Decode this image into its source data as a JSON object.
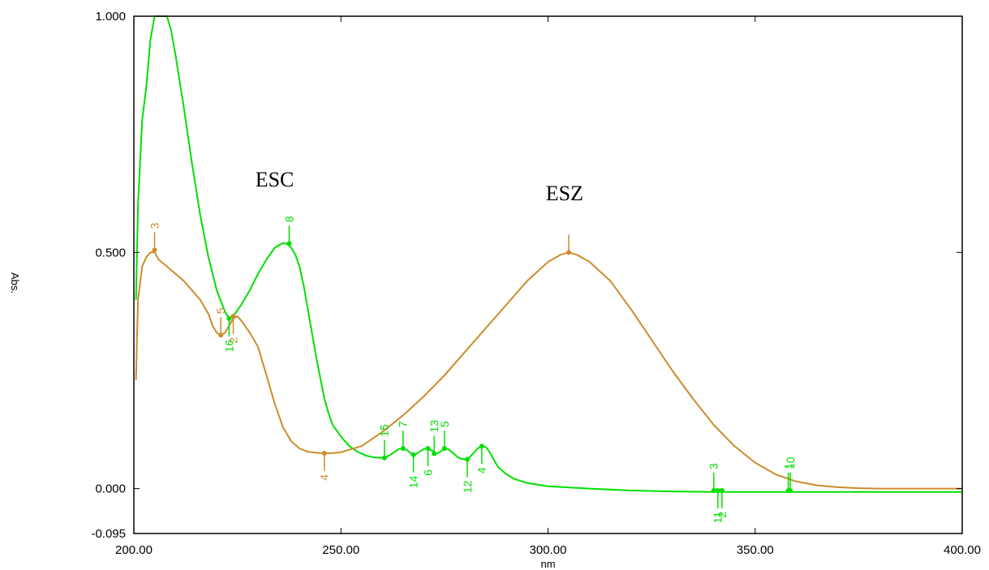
{
  "chart_data": {
    "type": "line",
    "xlabel": "nm",
    "ylabel": "Abs.",
    "xlim": [
      200,
      400
    ],
    "ylim": [
      -0.095,
      1.0
    ],
    "x_ticks": [
      "200.00",
      "250.00",
      "300.00",
      "350.00",
      "400.00"
    ],
    "y_ticks": [
      {
        "value": 1.0,
        "label": "1.000"
      },
      {
        "value": 0.5,
        "label": "0.500"
      },
      {
        "value": 0.0,
        "label": "0.000"
      },
      {
        "value": -0.095,
        "label": "-0.095"
      }
    ],
    "annotations": [
      {
        "text": "ESC",
        "x": 234,
        "y": 0.64
      },
      {
        "text": "ESZ",
        "x": 304,
        "y": 0.61
      }
    ],
    "series": [
      {
        "color": "#00e000",
        "x": [
          200.5,
          201,
          202,
          203,
          204,
          205,
          206,
          207,
          208,
          209,
          210,
          212,
          214,
          216,
          218,
          220,
          222,
          223,
          224,
          226,
          228,
          230,
          232,
          234,
          236,
          237,
          238,
          239,
          240,
          241,
          242,
          243,
          244,
          245,
          246,
          247,
          248,
          250,
          252,
          254,
          256,
          258,
          260,
          261,
          262,
          263,
          264,
          265,
          266,
          267,
          268,
          269,
          270,
          271,
          272,
          273,
          274,
          275,
          276,
          277,
          278,
          279,
          280,
          281,
          282,
          283,
          284,
          285,
          286,
          287,
          288,
          290,
          292,
          295,
          300,
          310,
          320,
          330,
          340,
          350,
          360,
          370,
          380,
          390,
          400
        ],
        "y": [
          0.4,
          0.6,
          0.78,
          0.85,
          0.95,
          1.0,
          1.0,
          1.0,
          1.0,
          0.97,
          0.92,
          0.81,
          0.69,
          0.58,
          0.49,
          0.42,
          0.375,
          0.36,
          0.365,
          0.39,
          0.42,
          0.455,
          0.485,
          0.51,
          0.52,
          0.518,
          0.51,
          0.495,
          0.47,
          0.43,
          0.38,
          0.33,
          0.28,
          0.235,
          0.19,
          0.16,
          0.135,
          0.11,
          0.09,
          0.078,
          0.07,
          0.066,
          0.065,
          0.067,
          0.072,
          0.078,
          0.084,
          0.085,
          0.081,
          0.074,
          0.072,
          0.078,
          0.084,
          0.085,
          0.08,
          0.074,
          0.078,
          0.085,
          0.083,
          0.076,
          0.068,
          0.063,
          0.062,
          0.066,
          0.075,
          0.085,
          0.09,
          0.088,
          0.076,
          0.06,
          0.045,
          0.03,
          0.02,
          0.012,
          0.005,
          0.0,
          -0.004,
          -0.006,
          -0.007,
          -0.007,
          -0.007,
          -0.007,
          -0.007,
          -0.007,
          -0.007
        ],
        "markers": [
          {
            "label": "8",
            "x": 237.5,
            "y": 0.519
          },
          {
            "label": "16",
            "x": 223.0,
            "y": 0.36
          },
          {
            "label": "7",
            "x": 265.0,
            "y": 0.085
          },
          {
            "label": "6",
            "x": 271.0,
            "y": 0.085
          },
          {
            "label": "5",
            "x": 275.0,
            "y": 0.085
          },
          {
            "label": "4",
            "x": 284.0,
            "y": 0.09
          },
          {
            "label": "15",
            "x": 260.5,
            "y": 0.065
          },
          {
            "label": "14",
            "x": 267.5,
            "y": 0.072
          },
          {
            "label": "13",
            "x": 272.5,
            "y": 0.074
          },
          {
            "label": "12",
            "x": 280.5,
            "y": 0.062
          },
          {
            "label": "3",
            "x": 340.0,
            "y": -0.004
          },
          {
            "label": "2",
            "x": 342.0,
            "y": -0.004
          },
          {
            "label": "1",
            "x": 358.0,
            "y": -0.004
          },
          {
            "label": "11",
            "x": 341.0,
            "y": -0.004
          },
          {
            "label": "10",
            "x": 358.5,
            "y": -0.004
          }
        ]
      },
      {
        "color": "#cc8c2a",
        "x": [
          200.5,
          201,
          202,
          203,
          204,
          205,
          206,
          208,
          210,
          212,
          214,
          216,
          218,
          219,
          220,
          221,
          222,
          223,
          224,
          225,
          226,
          228,
          230,
          232,
          234,
          236,
          238,
          240,
          242,
          244,
          246,
          248,
          250,
          255,
          260,
          265,
          270,
          275,
          280,
          285,
          290,
          295,
          300,
          303,
          305,
          307,
          310,
          315,
          320,
          325,
          330,
          335,
          340,
          345,
          350,
          355,
          360,
          365,
          370,
          375,
          380,
          390,
          400
        ],
        "y": [
          0.23,
          0.4,
          0.47,
          0.49,
          0.5,
          0.5,
          0.485,
          0.47,
          0.455,
          0.44,
          0.42,
          0.4,
          0.37,
          0.345,
          0.33,
          0.325,
          0.33,
          0.345,
          0.36,
          0.365,
          0.355,
          0.33,
          0.3,
          0.24,
          0.18,
          0.13,
          0.1,
          0.085,
          0.078,
          0.076,
          0.075,
          0.075,
          0.077,
          0.09,
          0.12,
          0.155,
          0.195,
          0.24,
          0.29,
          0.34,
          0.39,
          0.44,
          0.48,
          0.495,
          0.5,
          0.495,
          0.48,
          0.44,
          0.38,
          0.315,
          0.25,
          0.19,
          0.135,
          0.09,
          0.055,
          0.03,
          0.015,
          0.007,
          0.003,
          0.001,
          0.0,
          0.0,
          0.0
        ],
        "markers": [
          {
            "label": "3",
            "x": 205.0,
            "y": 0.505
          },
          {
            "label": "2",
            "x": 224.0,
            "y": 0.365
          },
          {
            "label": "5",
            "x": 221.0,
            "y": 0.325
          },
          {
            "label": "4",
            "x": 246.0,
            "y": 0.075
          },
          {
            "label": "",
            "x": 305.0,
            "y": 0.5
          }
        ]
      }
    ]
  }
}
